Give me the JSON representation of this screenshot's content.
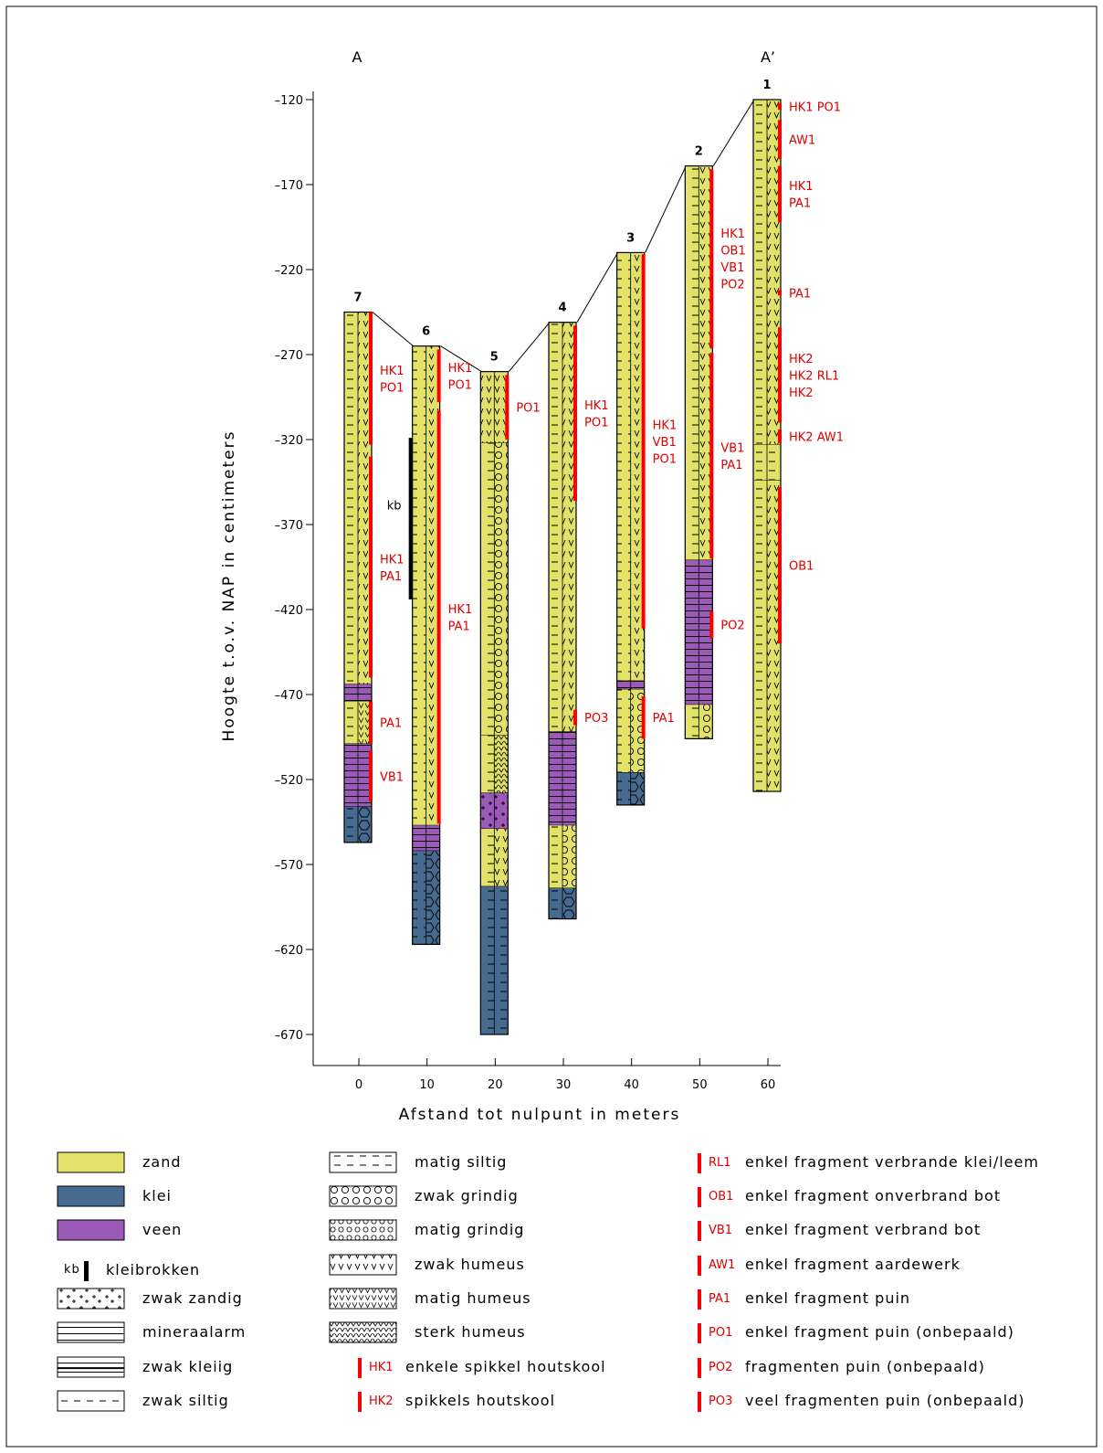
{
  "section": {
    "label_start": "A",
    "label_end": "A’",
    "y_axis_label": "Hoogte t.o.v. NAP in centimeters",
    "x_axis_label": "Afstand tot nulpunt in meters",
    "y_ticks": [
      -120,
      -170,
      -220,
      -270,
      -320,
      -370,
      -420,
      -470,
      -520,
      -570,
      -620,
      -670
    ],
    "x_ticks": [
      0,
      10,
      20,
      30,
      40,
      50,
      60
    ],
    "y_range": [
      -120,
      -670
    ],
    "x_range": [
      0,
      60
    ]
  },
  "colors": {
    "zand": "#e2e26b",
    "klei": "#476a90",
    "veen": "#9b59b8",
    "marker": "#ff0000",
    "marker_text": "#e00000"
  },
  "boreholes": [
    {
      "id": "7",
      "x": 0,
      "top": -245,
      "bottom": -557,
      "layers": [
        {
          "from": -245,
          "to": -464,
          "color": "zand",
          "pattern": "silt-humeus"
        },
        {
          "from": -464,
          "to": -474,
          "color": "veen",
          "pattern": "mineraal"
        },
        {
          "from": -474,
          "to": -499,
          "color": "zand",
          "pattern": "matig-humeus"
        },
        {
          "from": -499,
          "to": -536,
          "color": "veen",
          "pattern": "mineraal"
        },
        {
          "from": -536,
          "to": -557,
          "color": "klei",
          "pattern": "klei-grind"
        }
      ],
      "markers": [
        {
          "from": -245,
          "to": -323,
          "labels": [
            "HK1",
            "PO1"
          ]
        },
        {
          "from": -330,
          "to": -460,
          "labels": [
            "HK1",
            "PA1"
          ]
        },
        {
          "from": -474,
          "to": -499,
          "labels": [
            "PA1"
          ]
        },
        {
          "from": -503,
          "to": -533,
          "labels": [
            "VB1"
          ]
        }
      ]
    },
    {
      "id": "6",
      "x": 10,
      "top": -265,
      "bottom": -617,
      "layers": [
        {
          "from": -265,
          "to": -547,
          "color": "zand",
          "pattern": "silt-humeus"
        },
        {
          "from": -547,
          "to": -562,
          "color": "veen",
          "pattern": "mineraal"
        },
        {
          "from": -562,
          "to": -617,
          "color": "klei",
          "pattern": "klei-grind"
        }
      ],
      "markers": [
        {
          "from": -267,
          "to": -298,
          "labels": [
            "HK1",
            "PO1"
          ]
        },
        {
          "from": -303,
          "to": -546,
          "labels": [
            "HK1",
            "PA1"
          ]
        }
      ],
      "kleibrokken": {
        "from": -319,
        "to": -414,
        "label": "kb"
      }
    },
    {
      "id": "5",
      "x": 20,
      "top": -280,
      "bottom": -670,
      "layers": [
        {
          "from": -280,
          "to": -322,
          "color": "zand",
          "pattern": "humeus"
        },
        {
          "from": -322,
          "to": -494,
          "color": "zand",
          "pattern": "grindig"
        },
        {
          "from": -494,
          "to": -528,
          "color": "zand",
          "pattern": "sterk-humeus"
        },
        {
          "from": -528,
          "to": -549,
          "color": "veen",
          "pattern": "zandig"
        },
        {
          "from": -549,
          "to": -583,
          "color": "zand",
          "pattern": "silt-humeus"
        },
        {
          "from": -583,
          "to": -670,
          "color": "klei",
          "pattern": "silt"
        }
      ],
      "markers": [
        {
          "from": -282,
          "to": -320,
          "labels": [
            "PO1"
          ]
        }
      ]
    },
    {
      "id": "4",
      "x": 30,
      "top": -251,
      "bottom": -602,
      "layers": [
        {
          "from": -251,
          "to": -492,
          "color": "zand",
          "pattern": "silt-humeus"
        },
        {
          "from": -492,
          "to": -547,
          "color": "veen",
          "pattern": "mineraal"
        },
        {
          "from": -547,
          "to": -584,
          "color": "zand",
          "pattern": "grindig"
        },
        {
          "from": -584,
          "to": -602,
          "color": "klei",
          "pattern": "klei-grind"
        }
      ],
      "markers": [
        {
          "from": -253,
          "to": -356,
          "labels": [
            "HK1",
            "PO1"
          ]
        },
        {
          "from": -479,
          "to": -488,
          "labels": [
            "PO3"
          ]
        }
      ]
    },
    {
      "id": "3",
      "x": 40,
      "top": -210,
      "bottom": -535,
      "layers": [
        {
          "from": -210,
          "to": -462,
          "color": "zand",
          "pattern": "silt-humeus"
        },
        {
          "from": -462,
          "to": -467,
          "color": "veen",
          "pattern": "mineraal"
        },
        {
          "from": -467,
          "to": -516,
          "color": "zand",
          "pattern": "grindig"
        },
        {
          "from": -516,
          "to": -535,
          "color": "klei",
          "pattern": "klei-grind"
        }
      ],
      "markers": [
        {
          "from": -211,
          "to": -431,
          "labels": [
            "HK1",
            "VB1",
            "PO1"
          ]
        },
        {
          "from": -471,
          "to": -496,
          "labels": [
            "PA1"
          ]
        }
      ]
    },
    {
      "id": "2",
      "x": 50,
      "top": -159,
      "bottom": -496,
      "layers": [
        {
          "from": -159,
          "to": -391,
          "color": "zand",
          "pattern": "silt-humeus"
        },
        {
          "from": -391,
          "to": -476,
          "color": "veen",
          "pattern": "mineraal"
        },
        {
          "from": -476,
          "to": -496,
          "color": "zand",
          "pattern": "grindig"
        }
      ],
      "markers": [
        {
          "from": -161,
          "to": -266,
          "labels": [
            "HK1",
            "OB1",
            "VB1",
            "PO2"
          ]
        },
        {
          "from": -269,
          "to": -390,
          "labels": [
            "VB1",
            "PA1"
          ]
        },
        {
          "from": -421,
          "to": -437,
          "labels": [
            "PO2"
          ]
        }
      ]
    },
    {
      "id": "1",
      "x": 60,
      "top": -120,
      "bottom": -527,
      "layers": [
        {
          "from": -120,
          "to": -323,
          "color": "zand",
          "pattern": "silt-humeus"
        },
        {
          "from": -323,
          "to": -344,
          "color": "zand",
          "pattern": "silt"
        },
        {
          "from": -344,
          "to": -527,
          "color": "zand",
          "pattern": "silt-humeus"
        }
      ],
      "markers": [
        {
          "from": -122,
          "to": -126,
          "labels": [
            "HK1 PO1"
          ]
        },
        {
          "from": -132,
          "to": -155,
          "labels": [
            "AW1"
          ]
        },
        {
          "from": -159,
          "to": -192,
          "labels": [
            "HK1",
            "PA1"
          ]
        },
        {
          "from": -232,
          "to": -234,
          "labels": [
            "PA1"
          ]
        },
        {
          "from": -254,
          "to": -310,
          "labels": [
            "HK2",
            "HK2 RL1",
            "HK2"
          ]
        },
        {
          "from": -314,
          "to": -322,
          "labels": [
            "HK2 AW1"
          ]
        },
        {
          "from": -348,
          "to": -440,
          "labels": [
            "OB1"
          ]
        }
      ]
    }
  ],
  "legend": {
    "materials": [
      {
        "label": "zand",
        "color": "zand"
      },
      {
        "label": "klei",
        "color": "klei"
      },
      {
        "label": "veen",
        "color": "veen"
      }
    ],
    "kleibrokken": {
      "symbol": "kb",
      "label": "kleibrokken"
    },
    "patterns_col1": [
      {
        "label": "zwak zandig",
        "pattern": "zandig"
      },
      {
        "label": "mineraalarm",
        "pattern": "mineraal"
      },
      {
        "label": "zwak kleiig",
        "pattern": "kleiig"
      },
      {
        "label": "zwak siltig",
        "pattern": "zwak-silt"
      }
    ],
    "patterns_col2": [
      {
        "label": "matig siltig",
        "pattern": "silt"
      },
      {
        "label": "zwak grindig",
        "pattern": "grindig"
      },
      {
        "label": "matig grindig",
        "pattern": "matig-grindig"
      },
      {
        "label": "zwak humeus",
        "pattern": "humeus"
      },
      {
        "label": "matig humeus",
        "pattern": "matig-humeus"
      },
      {
        "label": "sterk humeus",
        "pattern": "sterk-humeus"
      }
    ],
    "codes_col2": [
      {
        "code": "HK1",
        "label": "enkele spikkel houtskool"
      },
      {
        "code": "HK2",
        "label": "spikkels houtskool"
      }
    ],
    "codes_col3": [
      {
        "code": "RL1",
        "label": "enkel fragment verbrande klei/leem"
      },
      {
        "code": "OB1",
        "label": "enkel fragment onverbrand bot"
      },
      {
        "code": "VB1",
        "label": "enkel fragment verbrand bot"
      },
      {
        "code": "AW1",
        "label": "enkel fragment aardewerk"
      },
      {
        "code": "PA1",
        "label": "enkel fragment puin"
      },
      {
        "code": "PO1",
        "label": "enkel fragment puin (onbepaald)"
      },
      {
        "code": "PO2",
        "label": "fragmenten puin (onbepaald)"
      },
      {
        "code": "PO3",
        "label": "veel fragmenten puin (onbepaald)"
      }
    ]
  }
}
